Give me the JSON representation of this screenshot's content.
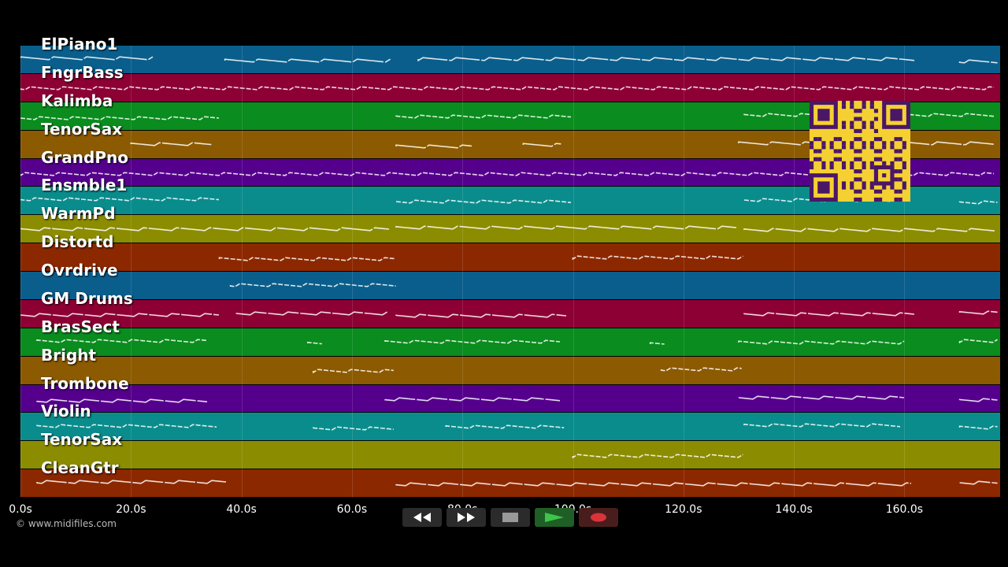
{
  "tracks": [
    {
      "name": "ElPiano1",
      "color": "#0a5e8c"
    },
    {
      "name": "FngrBass",
      "color": "#8c0033"
    },
    {
      "name": "Kalimba",
      "color": "#0a8c1e"
    },
    {
      "name": "TenorSax",
      "color": "#8c5a00"
    },
    {
      "name": "GrandPno",
      "color": "#55008c"
    },
    {
      "name": "Ensmble1",
      "color": "#0a8c8c"
    },
    {
      "name": "WarmPd",
      "color": "#8c8c00"
    },
    {
      "name": "Distortd",
      "color": "#8c2800"
    },
    {
      "name": "Ovrdrive",
      "color": "#0a5e8c"
    },
    {
      "name": "GM Drums",
      "color": "#8c0033"
    },
    {
      "name": "BrasSect",
      "color": "#0a8c1e"
    },
    {
      "name": "Bright",
      "color": "#8c5a00"
    },
    {
      "name": "Trombone",
      "color": "#55008c"
    },
    {
      "name": "Violin",
      "color": "#0a8c8c"
    },
    {
      "name": "TenorSax",
      "color": "#8c8c00"
    },
    {
      "name": "CleanGtr",
      "color": "#8c2800"
    }
  ],
  "timeline": {
    "ticks": [
      "0.0s",
      "20.0s",
      "40.0s",
      "60.0s",
      "80.0s",
      "100.0s",
      "120.0s",
      "140.0s",
      "160.0s"
    ],
    "seconds": [
      0,
      20,
      40,
      60,
      80,
      100,
      120,
      140,
      160
    ],
    "max_seconds": 177
  },
  "transport": {
    "buttons": [
      {
        "name": "rewind-button",
        "icon": "rewind-icon"
      },
      {
        "name": "fast-forward-button",
        "icon": "fast-forward-icon"
      },
      {
        "name": "stop-button",
        "icon": "stop-icon"
      },
      {
        "name": "play-button",
        "icon": "play-icon",
        "color": "#2fa83a"
      },
      {
        "name": "record-button",
        "icon": "record-icon",
        "color": "#d9343b"
      }
    ]
  },
  "copyright": "© www.midifiles.com",
  "note_segments": [
    [
      [
        0,
        24
      ],
      [
        37,
        67
      ],
      [
        72,
        162
      ],
      [
        170,
        177
      ]
    ],
    [
      [
        0,
        177
      ]
    ],
    [
      [
        0,
        36
      ],
      [
        68,
        100
      ],
      [
        131,
        177
      ]
    ],
    [
      [
        20,
        35
      ],
      [
        68,
        82
      ],
      [
        91,
        98
      ],
      [
        130,
        177
      ]
    ],
    [
      [
        0,
        177
      ]
    ],
    [
      [
        0,
        36
      ],
      [
        68,
        100
      ],
      [
        131,
        160
      ],
      [
        170,
        177
      ]
    ],
    [
      [
        0,
        67
      ],
      [
        68,
        130
      ],
      [
        131,
        177
      ]
    ],
    [
      [
        36,
        68
      ],
      [
        100,
        131
      ]
    ],
    [
      [
        38,
        68
      ]
    ],
    [
      [
        0,
        36
      ],
      [
        39,
        67
      ],
      [
        68,
        99
      ],
      [
        131,
        162
      ],
      [
        170,
        177
      ]
    ],
    [
      [
        3,
        34
      ],
      [
        52,
        55
      ],
      [
        66,
        98
      ],
      [
        114,
        117
      ],
      [
        130,
        160
      ],
      [
        170,
        177
      ]
    ],
    [
      [
        53,
        68
      ],
      [
        116,
        131
      ]
    ],
    [
      [
        3,
        34
      ],
      [
        66,
        98
      ],
      [
        130,
        160
      ],
      [
        170,
        177
      ]
    ],
    [
      [
        3,
        36
      ],
      [
        53,
        68
      ],
      [
        77,
        99
      ],
      [
        131,
        160
      ],
      [
        170,
        177
      ]
    ],
    [
      [
        100,
        131
      ]
    ],
    [
      [
        3,
        38
      ],
      [
        68,
        162
      ],
      [
        170,
        177
      ]
    ]
  ]
}
